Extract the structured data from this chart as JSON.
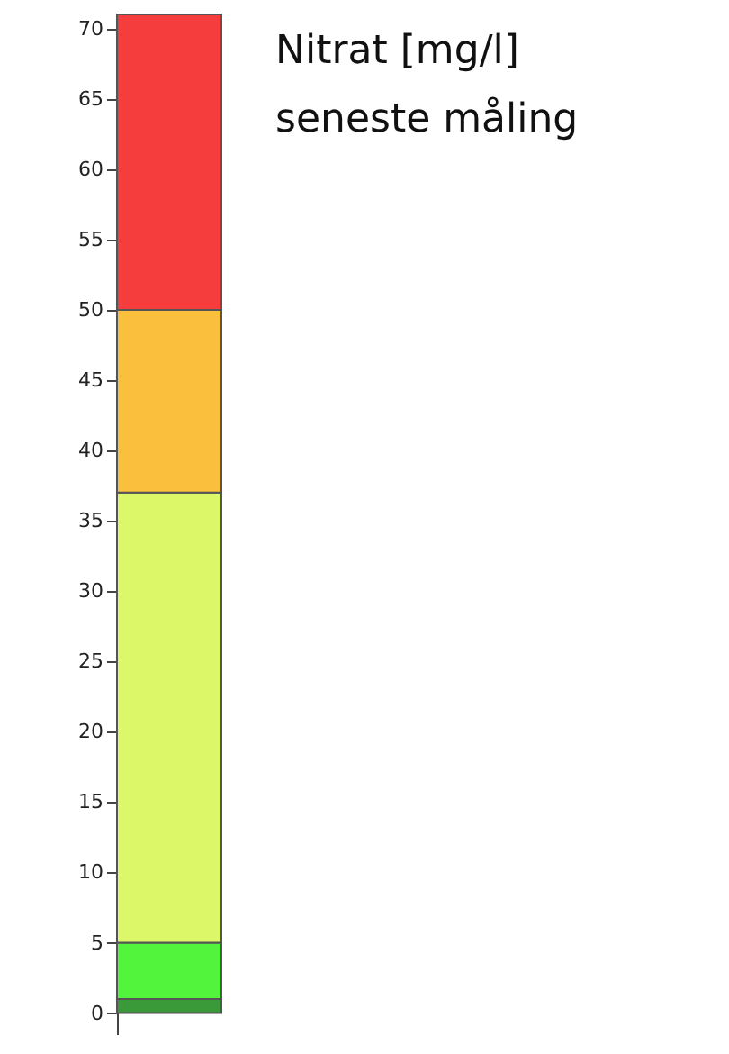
{
  "chart_data": {
    "type": "bar",
    "stacked": true,
    "title": "Nitrat [mg/l]",
    "subtitle": "seneste måling",
    "categories": [
      null
    ],
    "series": [
      {
        "color": "#3a9a3a",
        "values": [
          1
        ]
      },
      {
        "color": "#52f53c",
        "values": [
          4
        ]
      },
      {
        "color": "#dcf767",
        "values": [
          32
        ]
      },
      {
        "color": "#fbbf3e",
        "values": [
          13
        ]
      },
      {
        "color": "#f53d3d",
        "values": [
          21
        ]
      }
    ],
    "ylim": [
      -1.5,
      71
    ],
    "yticks": [
      0,
      5,
      10,
      15,
      20,
      25,
      30,
      35,
      40,
      45,
      50,
      55,
      60,
      65,
      70
    ],
    "grid": false,
    "tick_labels": "y"
  }
}
